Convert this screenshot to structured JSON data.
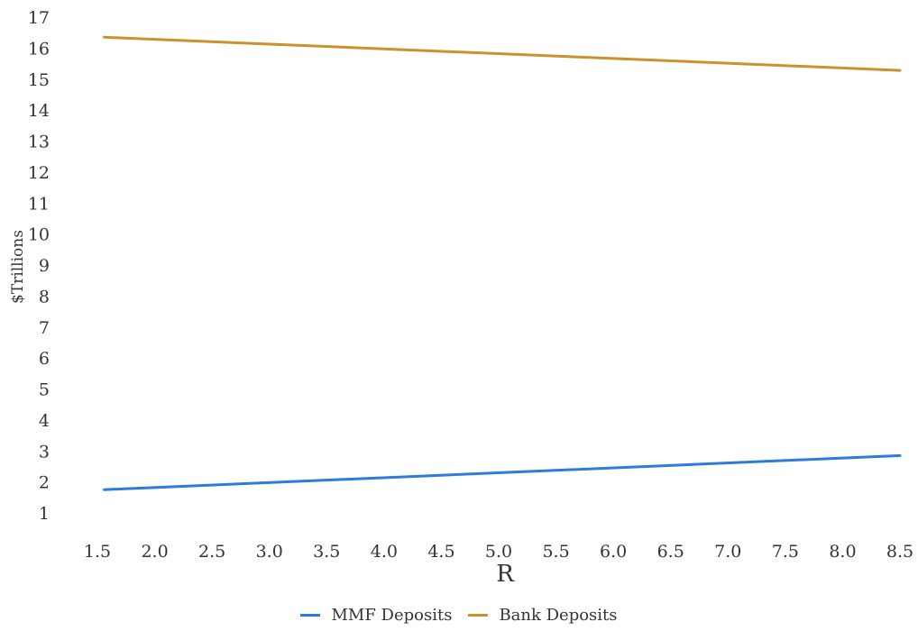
{
  "chart_data": {
    "type": "line",
    "xlabel": "R",
    "ylabel": "$Trillions",
    "x_ticks": [
      "1.5",
      "2.0",
      "2.5",
      "3.0",
      "3.5",
      "4.0",
      "4.5",
      "5.0",
      "5.5",
      "6.0",
      "6.5",
      "7.0",
      "7.5",
      "8.0",
      "8.5"
    ],
    "y_ticks": [
      "1",
      "2",
      "3",
      "4",
      "5",
      "6",
      "7",
      "8",
      "9",
      "10",
      "11",
      "12",
      "13",
      "14",
      "15",
      "16",
      "17"
    ],
    "xlim": [
      1.5,
      8.5
    ],
    "ylim": [
      1,
      17
    ],
    "grid": false,
    "legend_position": "bottom-center",
    "series": [
      {
        "name": "MMF Deposits",
        "color": "#2e7be0",
        "x": [
          1.56,
          8.5
        ],
        "y": [
          1.75,
          2.85
        ]
      },
      {
        "name": "Bank Deposits",
        "color": "#c9922a",
        "x": [
          1.56,
          8.5
        ],
        "y": [
          16.35,
          15.28
        ]
      }
    ]
  }
}
